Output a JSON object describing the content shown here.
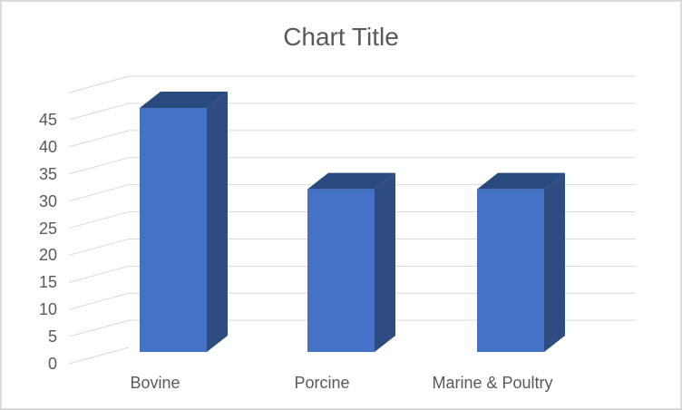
{
  "frame": {
    "background": "#FFFFFF",
    "border_color": "#D9D9D9"
  },
  "chart_data": {
    "type": "bar",
    "style": "3d-clustered-column",
    "title": "Chart Title",
    "categories": [
      "Bovine",
      "Porcine",
      "Marine & Poultry"
    ],
    "values": [
      45,
      30,
      30
    ],
    "xlabel": "",
    "ylabel": "",
    "ylim": [
      0,
      50
    ],
    "ytick_step": 5,
    "yticks": [
      0,
      5,
      10,
      15,
      20,
      25,
      30,
      35,
      40,
      45
    ],
    "grid": true,
    "legend": false,
    "colors": {
      "bar_front": "#4472C4",
      "bar_side": "#2F4C80",
      "bar_top": "#294A7E",
      "gridline": "#D9D9D9",
      "text": "#595959"
    }
  }
}
